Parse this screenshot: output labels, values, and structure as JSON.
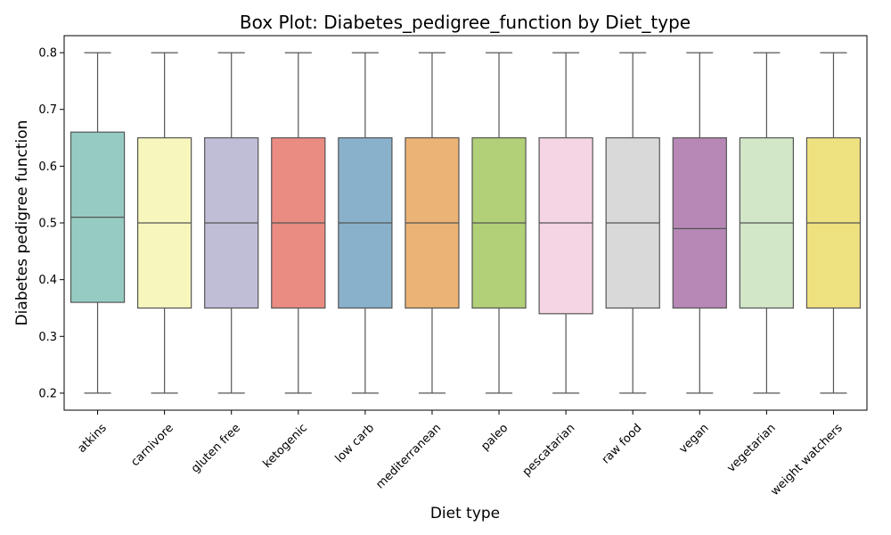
{
  "chart_data": {
    "type": "box",
    "title": "Box Plot: Diabetes_pedigree_function by Diet_type",
    "xlabel": "Diet type",
    "ylabel": "Diabetes pedigree function",
    "ylim": [
      0.17,
      0.83
    ],
    "yticks": [
      "0.2",
      "0.3",
      "0.4",
      "0.5",
      "0.6",
      "0.7",
      "0.8"
    ],
    "grid": false,
    "legend": "none",
    "categories": [
      "atkins",
      "carnivore",
      "gluten free",
      "ketogenic",
      "low carb",
      "mediterranean",
      "paleo",
      "pescatarian",
      "raw food",
      "vegan",
      "vegetarian",
      "weight watchers"
    ],
    "boxes": [
      {
        "category": "atkins",
        "min": 0.2,
        "q1": 0.36,
        "median": 0.51,
        "q3": 0.66,
        "max": 0.8,
        "color": "#96cbc2"
      },
      {
        "category": "carnivore",
        "min": 0.2,
        "q1": 0.35,
        "median": 0.5,
        "q3": 0.65,
        "max": 0.8,
        "color": "#f7f7bd"
      },
      {
        "category": "gluten free",
        "min": 0.2,
        "q1": 0.35,
        "median": 0.5,
        "q3": 0.65,
        "max": 0.8,
        "color": "#c0bed7"
      },
      {
        "category": "ketogenic",
        "min": 0.2,
        "q1": 0.35,
        "median": 0.5,
        "q3": 0.65,
        "max": 0.8,
        "color": "#ea8c82"
      },
      {
        "category": "low carb",
        "min": 0.2,
        "q1": 0.35,
        "median": 0.5,
        "q3": 0.65,
        "max": 0.8,
        "color": "#8ab1cb"
      },
      {
        "category": "mediterranean",
        "min": 0.2,
        "q1": 0.35,
        "median": 0.5,
        "q3": 0.65,
        "max": 0.8,
        "color": "#ebb375"
      },
      {
        "category": "paleo",
        "min": 0.2,
        "q1": 0.35,
        "median": 0.5,
        "q3": 0.65,
        "max": 0.8,
        "color": "#b1d078"
      },
      {
        "category": "pescatarian",
        "min": 0.2,
        "q1": 0.34,
        "median": 0.5,
        "q3": 0.65,
        "max": 0.8,
        "color": "#f5d4e4"
      },
      {
        "category": "raw food",
        "min": 0.2,
        "q1": 0.35,
        "median": 0.5,
        "q3": 0.65,
        "max": 0.8,
        "color": "#d9d9d9"
      },
      {
        "category": "vegan",
        "min": 0.2,
        "q1": 0.35,
        "median": 0.49,
        "q3": 0.65,
        "max": 0.8,
        "color": "#b788b6"
      },
      {
        "category": "vegetarian",
        "min": 0.2,
        "q1": 0.35,
        "median": 0.5,
        "q3": 0.65,
        "max": 0.8,
        "color": "#d1e7c8"
      },
      {
        "category": "weight watchers",
        "min": 0.2,
        "q1": 0.35,
        "median": 0.5,
        "q3": 0.65,
        "max": 0.8,
        "color": "#eee17f"
      }
    ]
  }
}
